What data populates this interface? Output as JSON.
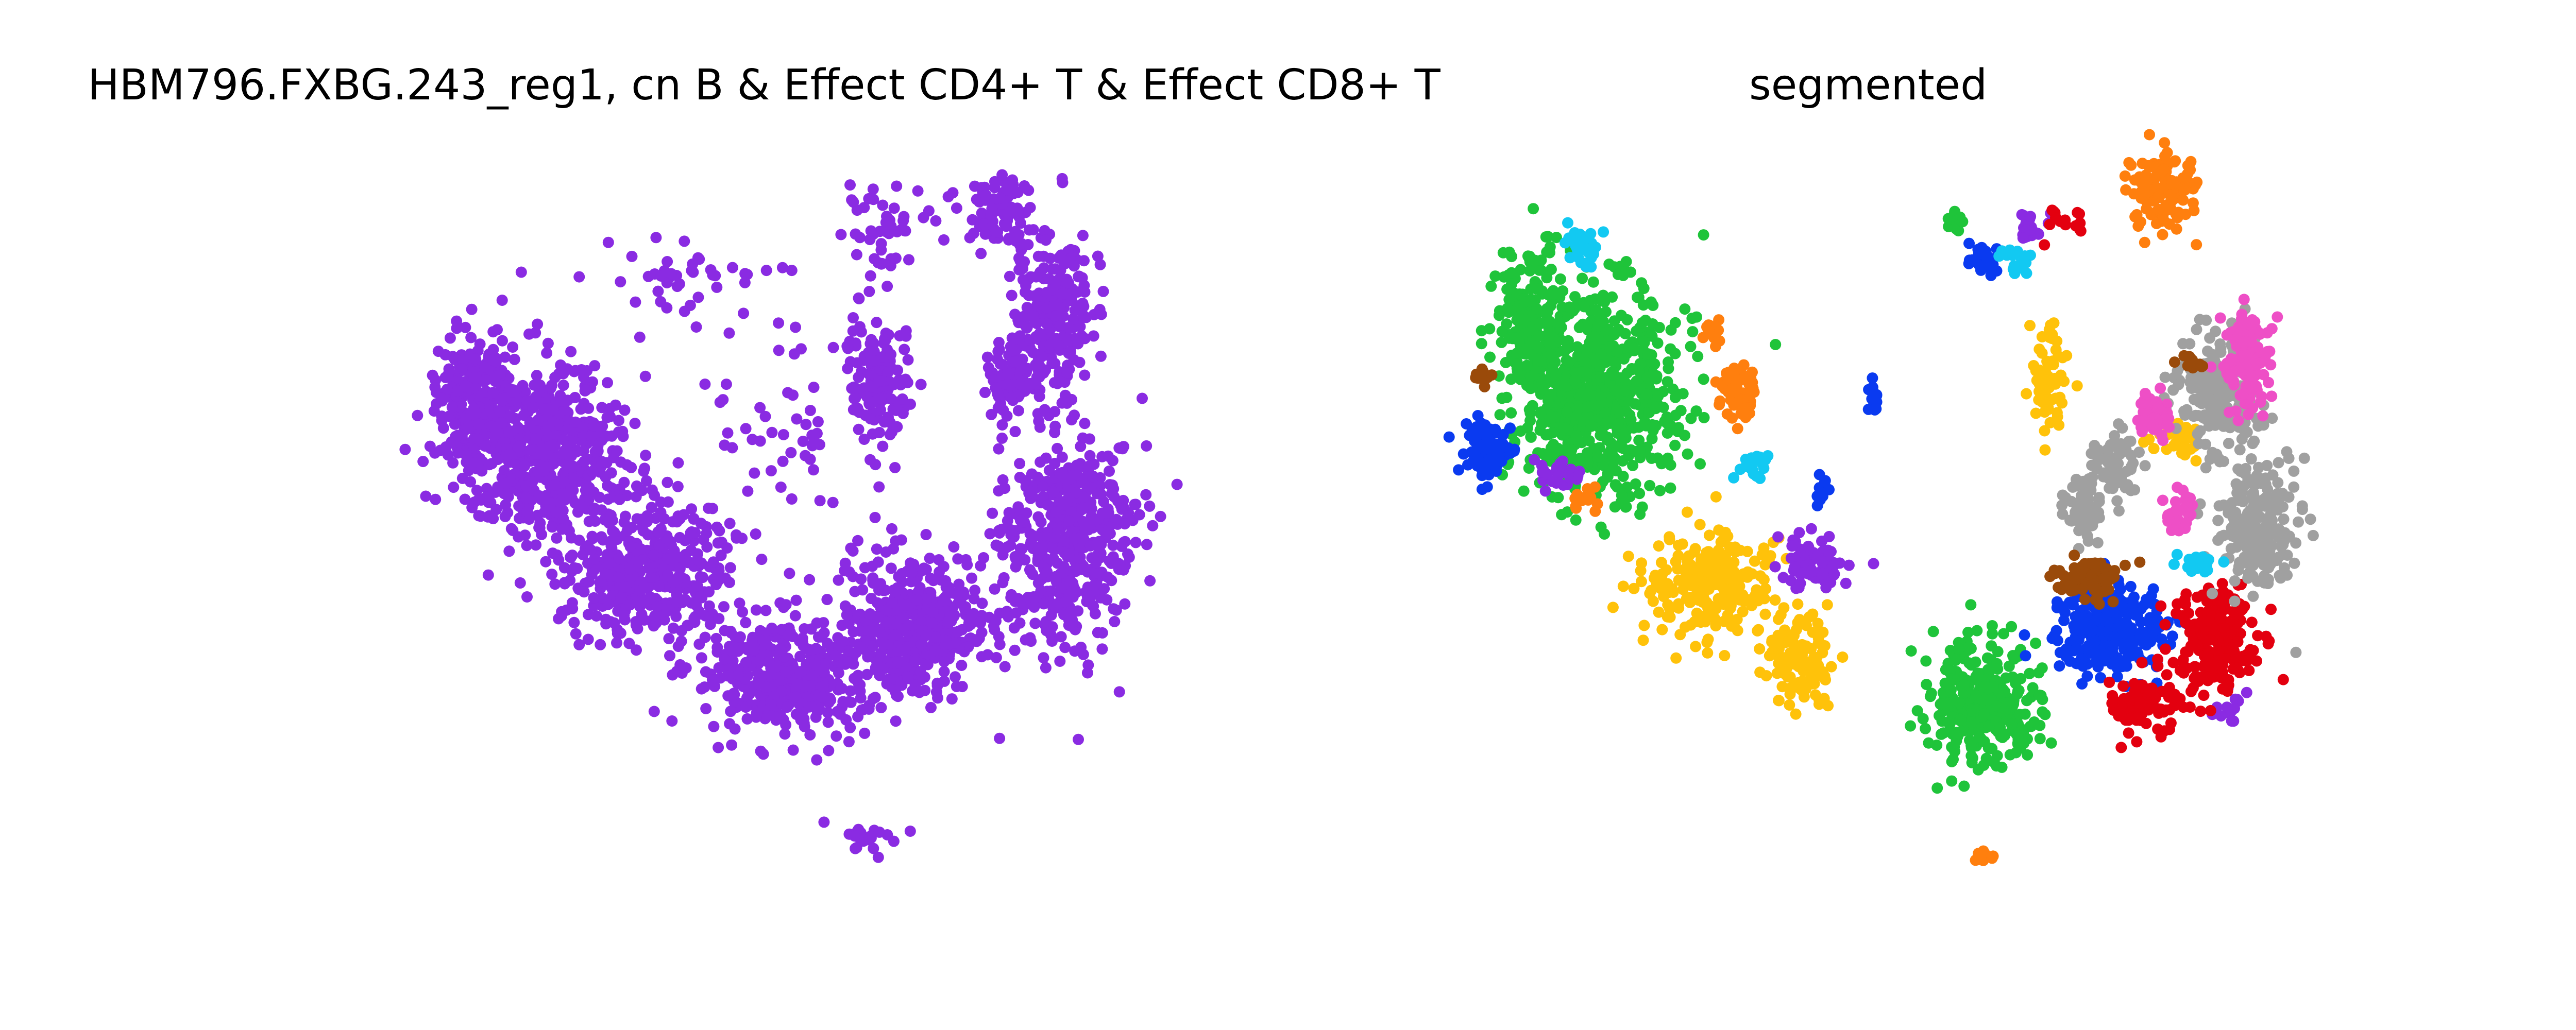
{
  "charts": {
    "left_title": "HBM796.FXBG.243_reg1, cn B & Effect CD4+ T & Effect CD8+ T",
    "right_title": "segmented"
  },
  "colors": {
    "purple": "#8a2be2",
    "green": "#1fc43a",
    "blue": "#0a3af0",
    "yellow": "#ffc20a",
    "orange": "#ff7f0e",
    "gray": "#a0a0a0",
    "pink": "#ee4fc6",
    "red": "#e3000f",
    "brown": "#9a4a0a",
    "cyan": "#12c9f2"
  },
  "chart_data": [
    {
      "type": "scatter",
      "title": "HBM796.FXBG.243_reg1, cn B & Effect CD4+ T & Effect CD8+ T",
      "xlabel": "",
      "ylabel": "",
      "axes": "off",
      "grid": false,
      "series": [
        {
          "color": "purple",
          "clusters": [
            {
              "x": 0.14,
              "y": 0.34,
              "rx": 0.05,
              "ry": 0.1,
              "n": 260
            },
            {
              "x": 0.22,
              "y": 0.4,
              "rx": 0.1,
              "ry": 0.12,
              "n": 520
            },
            {
              "x": 0.34,
              "y": 0.56,
              "rx": 0.1,
              "ry": 0.09,
              "n": 420
            },
            {
              "x": 0.5,
              "y": 0.7,
              "rx": 0.1,
              "ry": 0.08,
              "n": 380
            },
            {
              "x": 0.66,
              "y": 0.64,
              "rx": 0.09,
              "ry": 0.1,
              "n": 420
            },
            {
              "x": 0.84,
              "y": 0.52,
              "rx": 0.08,
              "ry": 0.15,
              "n": 480
            },
            {
              "x": 0.82,
              "y": 0.22,
              "rx": 0.05,
              "ry": 0.12,
              "n": 240
            },
            {
              "x": 0.62,
              "y": 0.3,
              "rx": 0.04,
              "ry": 0.09,
              "n": 140
            },
            {
              "x": 0.77,
              "y": 0.3,
              "rx": 0.03,
              "ry": 0.05,
              "n": 70
            },
            {
              "x": 0.76,
              "y": 0.08,
              "rx": 0.04,
              "ry": 0.05,
              "n": 80
            },
            {
              "x": 0.62,
              "y": 0.1,
              "rx": 0.05,
              "ry": 0.05,
              "n": 50
            },
            {
              "x": 0.4,
              "y": 0.17,
              "rx": 0.1,
              "ry": 0.06,
              "n": 45
            },
            {
              "x": 0.5,
              "y": 0.38,
              "rx": 0.1,
              "ry": 0.1,
              "n": 45
            },
            {
              "x": 0.6,
              "y": 0.92,
              "rx": 0.04,
              "ry": 0.02,
              "n": 20
            }
          ]
        }
      ]
    },
    {
      "type": "scatter",
      "title": "segmented",
      "xlabel": "",
      "ylabel": "",
      "axes": "off",
      "grid": false,
      "series": [
        {
          "color": "green",
          "clusters": [
            {
              "x": 0.16,
              "y": 0.32,
              "rx": 0.1,
              "ry": 0.14,
              "n": 700
            },
            {
              "x": 0.08,
              "y": 0.22,
              "rx": 0.04,
              "ry": 0.1,
              "n": 150
            },
            {
              "x": 0.62,
              "y": 0.74,
              "rx": 0.07,
              "ry": 0.08,
              "n": 320
            },
            {
              "x": 0.59,
              "y": 0.09,
              "rx": 0.01,
              "ry": 0.015,
              "n": 20
            }
          ]
        },
        {
          "color": "yellow",
          "clusters": [
            {
              "x": 0.3,
              "y": 0.58,
              "rx": 0.08,
              "ry": 0.07,
              "n": 240
            },
            {
              "x": 0.4,
              "y": 0.68,
              "rx": 0.04,
              "ry": 0.06,
              "n": 120
            },
            {
              "x": 0.7,
              "y": 0.3,
              "rx": 0.02,
              "ry": 0.07,
              "n": 70
            },
            {
              "x": 0.86,
              "y": 0.38,
              "rx": 0.03,
              "ry": 0.02,
              "n": 30
            }
          ]
        },
        {
          "color": "purple",
          "clusters": [
            {
              "x": 0.42,
              "y": 0.55,
              "rx": 0.04,
              "ry": 0.04,
              "n": 90
            },
            {
              "x": 0.11,
              "y": 0.43,
              "rx": 0.03,
              "ry": 0.02,
              "n": 30
            },
            {
              "x": 0.68,
              "y": 0.1,
              "rx": 0.02,
              "ry": 0.02,
              "n": 20
            },
            {
              "x": 0.92,
              "y": 0.74,
              "rx": 0.02,
              "ry": 0.02,
              "n": 15
            }
          ]
        },
        {
          "color": "blue",
          "clusters": [
            {
              "x": 0.78,
              "y": 0.64,
              "rx": 0.07,
              "ry": 0.06,
              "n": 260
            },
            {
              "x": 0.03,
              "y": 0.4,
              "rx": 0.03,
              "ry": 0.04,
              "n": 80
            },
            {
              "x": 0.62,
              "y": 0.14,
              "rx": 0.02,
              "ry": 0.02,
              "n": 30
            },
            {
              "x": 0.49,
              "y": 0.33,
              "rx": 0.01,
              "ry": 0.02,
              "n": 12
            },
            {
              "x": 0.43,
              "y": 0.45,
              "rx": 0.01,
              "ry": 0.02,
              "n": 12
            }
          ]
        },
        {
          "color": "red",
          "clusters": [
            {
              "x": 0.9,
              "y": 0.66,
              "rx": 0.05,
              "ry": 0.08,
              "n": 200
            },
            {
              "x": 0.82,
              "y": 0.74,
              "rx": 0.04,
              "ry": 0.04,
              "n": 90
            },
            {
              "x": 0.72,
              "y": 0.09,
              "rx": 0.02,
              "ry": 0.02,
              "n": 20
            }
          ]
        },
        {
          "color": "gray",
          "clusters": [
            {
              "x": 0.9,
              "y": 0.32,
              "rx": 0.05,
              "ry": 0.08,
              "n": 200
            },
            {
              "x": 0.95,
              "y": 0.5,
              "rx": 0.05,
              "ry": 0.08,
              "n": 240
            },
            {
              "x": 0.78,
              "y": 0.42,
              "rx": 0.03,
              "ry": 0.05,
              "n": 60
            },
            {
              "x": 0.74,
              "y": 0.48,
              "rx": 0.02,
              "ry": 0.04,
              "n": 50
            }
          ]
        },
        {
          "color": "orange",
          "clusters": [
            {
              "x": 0.84,
              "y": 0.05,
              "rx": 0.04,
              "ry": 0.06,
              "n": 110
            },
            {
              "x": 0.33,
              "y": 0.32,
              "rx": 0.02,
              "ry": 0.04,
              "n": 60
            },
            {
              "x": 0.3,
              "y": 0.24,
              "rx": 0.01,
              "ry": 0.02,
              "n": 15
            },
            {
              "x": 0.62,
              "y": 0.95,
              "rx": 0.015,
              "ry": 0.01,
              "n": 12
            },
            {
              "x": 0.15,
              "y": 0.46,
              "rx": 0.02,
              "ry": 0.02,
              "n": 15
            }
          ]
        },
        {
          "color": "pink",
          "clusters": [
            {
              "x": 0.94,
              "y": 0.28,
              "rx": 0.03,
              "ry": 0.07,
              "n": 120
            },
            {
              "x": 0.83,
              "y": 0.35,
              "rx": 0.02,
              "ry": 0.03,
              "n": 40
            },
            {
              "x": 0.86,
              "y": 0.48,
              "rx": 0.02,
              "ry": 0.03,
              "n": 30
            }
          ]
        },
        {
          "color": "brown",
          "clusters": [
            {
              "x": 0.75,
              "y": 0.57,
              "rx": 0.04,
              "ry": 0.03,
              "n": 90
            },
            {
              "x": 0.87,
              "y": 0.28,
              "rx": 0.015,
              "ry": 0.01,
              "n": 15
            },
            {
              "x": 0.02,
              "y": 0.3,
              "rx": 0.01,
              "ry": 0.02,
              "n": 12
            }
          ]
        },
        {
          "color": "cyan",
          "clusters": [
            {
              "x": 0.14,
              "y": 0.12,
              "rx": 0.02,
              "ry": 0.03,
              "n": 30
            },
            {
              "x": 0.66,
              "y": 0.14,
              "rx": 0.015,
              "ry": 0.02,
              "n": 20
            },
            {
              "x": 0.35,
              "y": 0.42,
              "rx": 0.02,
              "ry": 0.02,
              "n": 20
            },
            {
              "x": 0.88,
              "y": 0.55,
              "rx": 0.03,
              "ry": 0.015,
              "n": 25
            }
          ]
        }
      ]
    }
  ]
}
